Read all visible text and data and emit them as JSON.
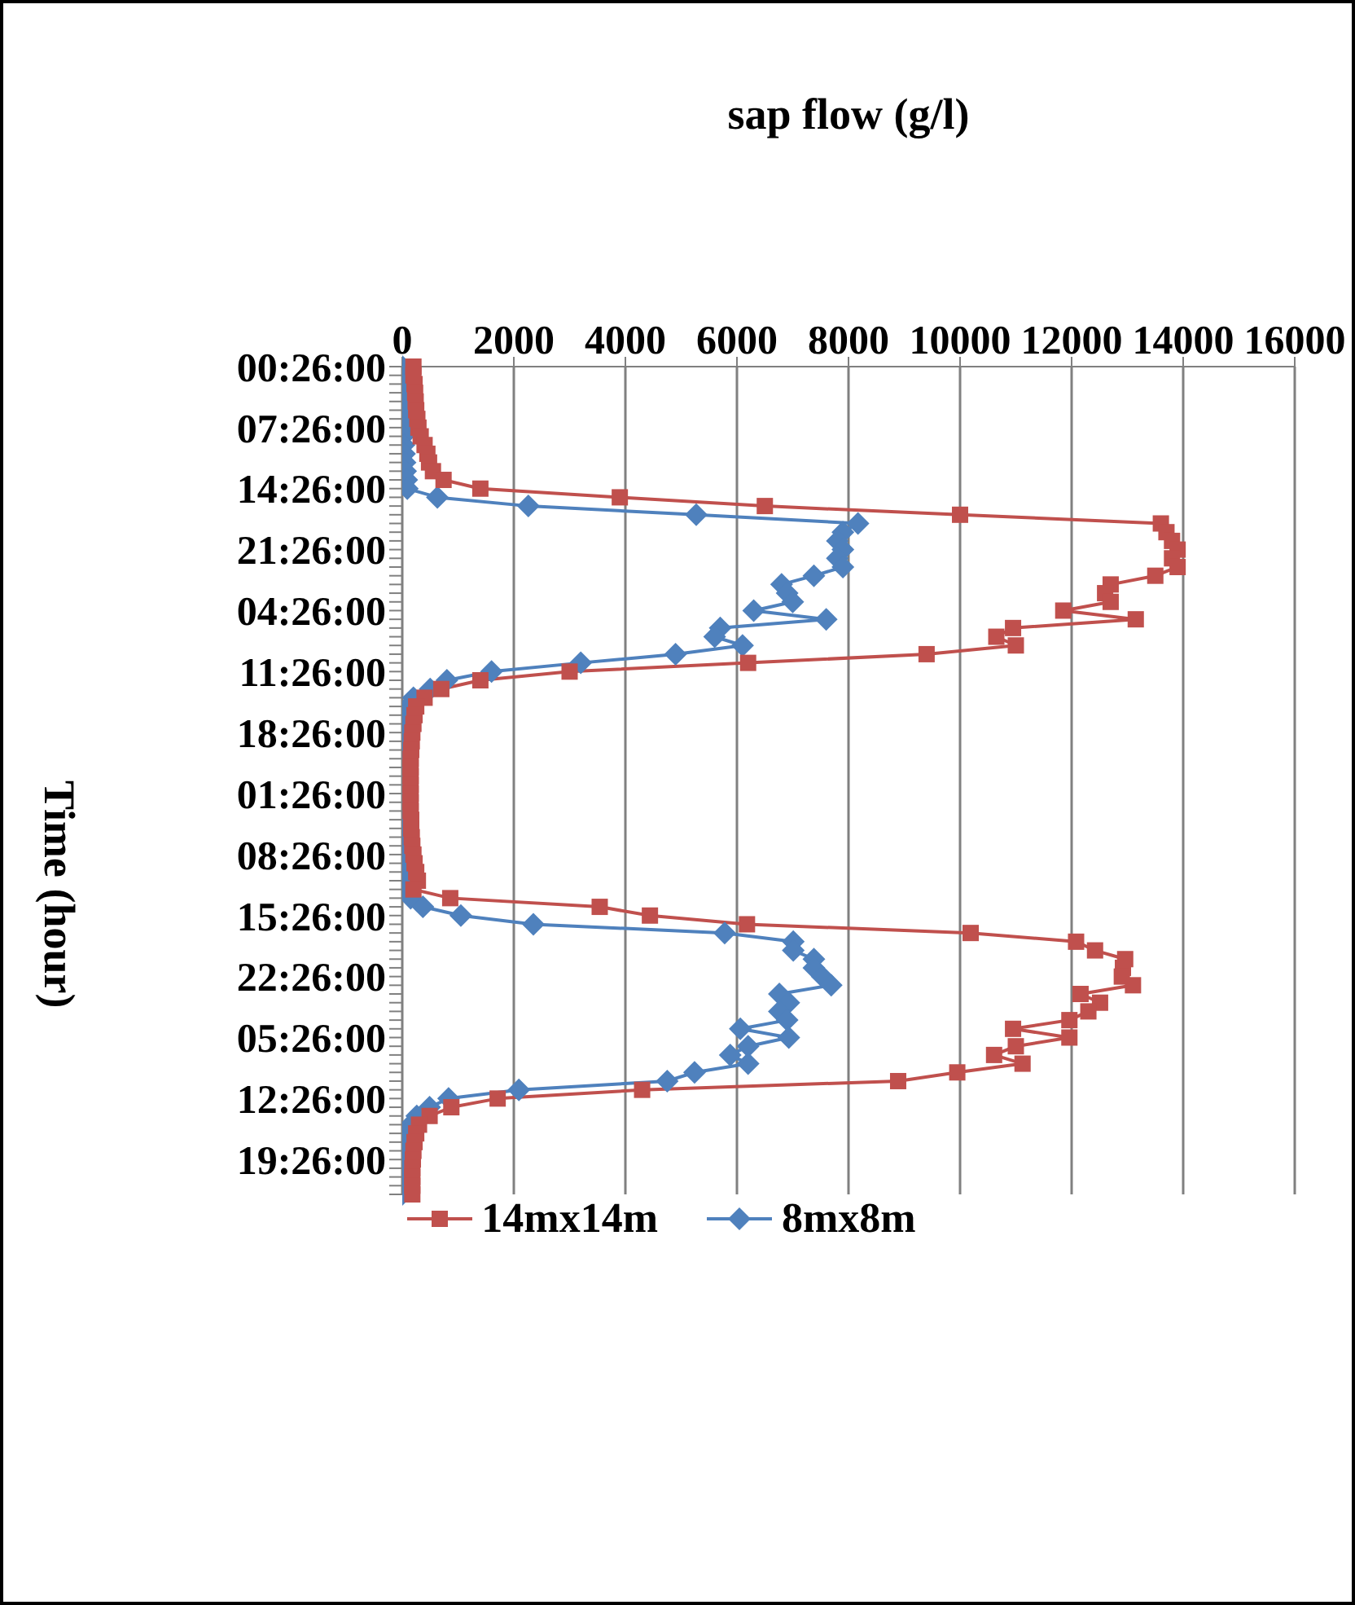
{
  "chart_data": {
    "type": "line",
    "orientation": "horizontal",
    "xlabel": "sap flow (g/l)",
    "ylabel": "Time (hour)",
    "categories": [
      "00:26:00",
      null,
      null,
      null,
      null,
      null,
      null,
      "07:26:00",
      null,
      null,
      null,
      null,
      null,
      null,
      "14:26:00",
      null,
      null,
      null,
      null,
      null,
      null,
      "21:26:00",
      null,
      null,
      null,
      null,
      null,
      null,
      "04:26:00",
      null,
      null,
      null,
      null,
      null,
      null,
      "11:26:00",
      null,
      null,
      null,
      null,
      null,
      null,
      "18:26:00",
      null,
      null,
      null,
      null,
      null,
      null,
      "01:26:00",
      null,
      null,
      null,
      null,
      null,
      null,
      "08:26:00",
      null,
      null,
      null,
      null,
      null,
      null,
      "15:26:00",
      null,
      null,
      null,
      null,
      null,
      null,
      "22:26:00",
      null,
      null,
      null,
      null,
      null,
      null,
      "05:26:00",
      null,
      null,
      null,
      null,
      null,
      null,
      "12:26:00",
      null,
      null,
      null,
      null,
      null,
      null,
      "19:26:00",
      null,
      null,
      null,
      null
    ],
    "series": [
      {
        "name": "14mx14m",
        "color": "#c0504d",
        "marker": "square",
        "values": [
          200,
          200,
          220,
          230,
          240,
          250,
          270,
          290,
          330,
          400,
          450,
          480,
          550,
          740,
          1400,
          3900,
          6500,
          10000,
          13600,
          13700,
          13800,
          13900,
          13800,
          13900,
          13500,
          12700,
          12600,
          12700,
          11850,
          13150,
          10950,
          10650,
          11000,
          9400,
          6200,
          3000,
          1400,
          700,
          400,
          250,
          220,
          200,
          180,
          170,
          160,
          150,
          150,
          150,
          150,
          150,
          150,
          150,
          160,
          160,
          170,
          180,
          200,
          220,
          250,
          280,
          200,
          860,
          3540,
          4440,
          6180,
          10190,
          12080,
          12420,
          12960,
          12920,
          12900,
          13100,
          12160,
          12510,
          12300,
          11960,
          10950,
          11960,
          11000,
          10610,
          11120,
          9950,
          8890,
          4300,
          1710,
          880,
          490,
          300,
          250,
          220,
          200,
          190,
          180,
          180,
          180,
          180
        ]
      },
      {
        "name": "8mx8m",
        "color": "#4f81bd",
        "marker": "diamond",
        "values": [
          0,
          0,
          0,
          0,
          0,
          10,
          10,
          20,
          20,
          30,
          40,
          50,
          60,
          80,
          90,
          630,
          2260,
          5270,
          8170,
          7900,
          7800,
          7900,
          7800,
          7900,
          7380,
          6800,
          6900,
          7000,
          6300,
          7600,
          5700,
          5600,
          6100,
          4900,
          3200,
          1600,
          800,
          500,
          200,
          100,
          50,
          30,
          20,
          20,
          10,
          10,
          10,
          10,
          10,
          10,
          10,
          10,
          10,
          10,
          10,
          10,
          10,
          20,
          20,
          30,
          40,
          150,
          370,
          1050,
          2350,
          5780,
          7010,
          7010,
          7380,
          7380,
          7530,
          7690,
          6760,
          6930,
          6760,
          6900,
          6060,
          6930,
          6200,
          5880,
          6200,
          5240,
          4750,
          2090,
          830,
          490,
          260,
          150,
          80,
          50,
          30,
          20,
          10,
          0,
          0,
          0
        ]
      }
    ],
    "xlim": [
      0,
      16000
    ],
    "xticks": [
      0,
      2000,
      4000,
      6000,
      8000,
      10000,
      12000,
      14000,
      16000
    ],
    "grid": "x",
    "legend": "bottom"
  }
}
